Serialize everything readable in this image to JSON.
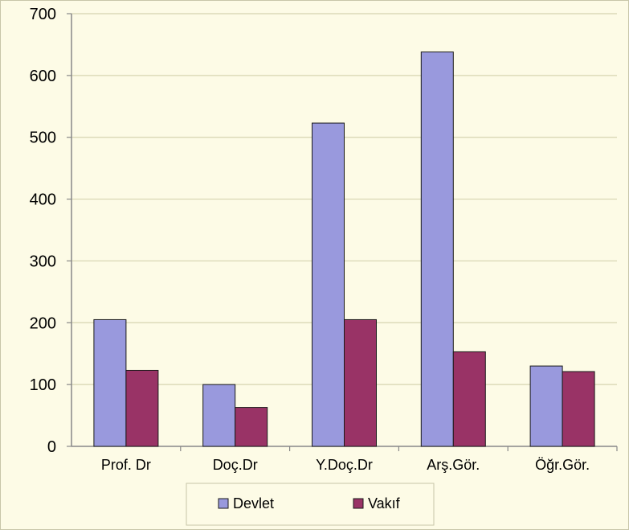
{
  "chart_data": {
    "type": "bar",
    "title": "",
    "xlabel": "",
    "ylabel": "",
    "categories": [
      "Prof. Dr",
      "Doç.Dr",
      "Y.Doç.Dr",
      "Arş.Gör.",
      "Öğr.Gör."
    ],
    "series": [
      {
        "name": "Devlet",
        "color": "#9999dd",
        "values": [
          205,
          100,
          523,
          638,
          130
        ]
      },
      {
        "name": "Vakıf",
        "color": "#993366",
        "values": [
          123,
          63,
          205,
          153,
          121
        ]
      }
    ],
    "ylim": [
      0,
      700
    ],
    "yticks": [
      "0",
      "100",
      "200",
      "300",
      "400",
      "500",
      "600",
      "700"
    ],
    "grid": true,
    "legend_position": "bottom",
    "background_color": "#fdfbe6",
    "gridline_color": "#d6d4b0"
  }
}
